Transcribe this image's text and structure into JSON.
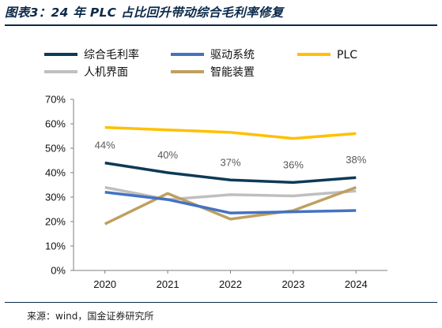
{
  "header": {
    "title": "图表3：24 年 PLC 占比回升带动综合毛利率修复"
  },
  "footer": {
    "source": "来源：wind，国金证券研究所"
  },
  "chart_data": {
    "type": "line",
    "categories": [
      "2020",
      "2021",
      "2022",
      "2023",
      "2024"
    ],
    "ylim": [
      0,
      70
    ],
    "yticks": [
      "0%",
      "10%",
      "20%",
      "30%",
      "40%",
      "50%",
      "60%",
      "70%"
    ],
    "grid": false,
    "legend_position": "top",
    "series": [
      {
        "name": "综合毛利率",
        "color": "#0d3a56",
        "values": [
          44,
          40,
          37,
          36,
          38
        ],
        "labels": [
          "44%",
          "40%",
          "37%",
          "36%",
          "38%"
        ]
      },
      {
        "name": "驱动系统",
        "color": "#4472c4",
        "values": [
          32,
          29,
          23.5,
          24,
          24.5
        ]
      },
      {
        "name": "PLC",
        "color": "#ffc000",
        "values": [
          58.5,
          57.5,
          56.5,
          54,
          56
        ]
      },
      {
        "name": "人机界面",
        "color": "#bfbfbf",
        "values": [
          34,
          29,
          31,
          30.5,
          32.5
        ]
      },
      {
        "name": "智能装置",
        "color": "#bf9f60",
        "values": [
          19,
          31.5,
          21,
          24.5,
          34
        ]
      }
    ]
  }
}
